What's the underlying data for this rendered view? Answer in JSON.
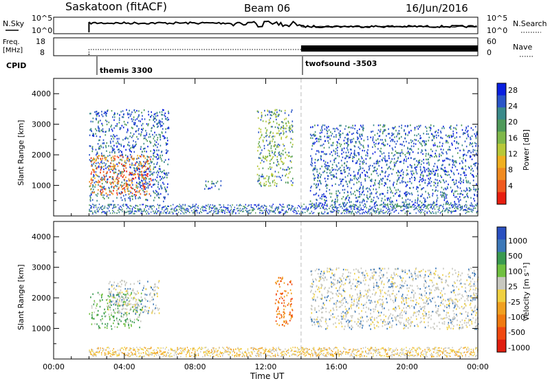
{
  "header": {
    "station": "Saskatoon (fitACF)",
    "beam": "Beam 06",
    "date": "16/Jun/2016"
  },
  "summary_panel": {
    "nsky_label": "N.Sky",
    "nsky_ticks": [
      "10^5",
      "10^0"
    ],
    "nsearch_label": "N.Search",
    "nsearch_ticks": [
      "10^5",
      "10^0"
    ],
    "freq_label": "Freq.",
    "freq_unit": "[MHz]",
    "freq_ticks": [
      "18",
      "8"
    ],
    "nave_label": "Nave",
    "nave_ticks": [
      "60",
      "0"
    ],
    "cpid_label": "CPID",
    "cpid_entries": [
      {
        "start": "02:00",
        "name": "themis 3300"
      },
      {
        "start": "14:00",
        "name": "twofsound -3503"
      }
    ]
  },
  "chart_data": [
    {
      "type": "heatmap",
      "panel": "power",
      "xlabel": "",
      "ylabel": "Slant Range [km]",
      "x_range": [
        "00:00",
        "24:00"
      ],
      "ylim": [
        0,
        4500
      ],
      "y_ticks": [
        1000,
        2000,
        3000,
        4000
      ],
      "colorbar": {
        "label": "Power [dB]",
        "ticks": [
          4,
          8,
          12,
          16,
          20,
          24,
          28
        ],
        "colors": [
          "#0a1fe0",
          "#2a55c8",
          "#3a8a8a",
          "#4f9a5a",
          "#7fb84a",
          "#b8c838",
          "#f0b020",
          "#f08a20",
          "#f05a20",
          "#e81e10"
        ]
      },
      "scatter_regions": [
        {
          "t_start": "02:00",
          "t_end": "06:30",
          "range_lo": 500,
          "range_hi": 3500,
          "level": "low"
        },
        {
          "t_start": "02:00",
          "t_end": "05:30",
          "range_lo": 700,
          "range_hi": 2000,
          "level": "high"
        },
        {
          "t_start": "08:30",
          "t_end": "09:30",
          "range_lo": 900,
          "range_hi": 1200,
          "level": "low"
        },
        {
          "t_start": "11:30",
          "t_end": "13:30",
          "range_lo": 1000,
          "range_hi": 3500,
          "level": "medium"
        },
        {
          "t_start": "14:30",
          "t_end": "24:00",
          "range_lo": 300,
          "range_hi": 3000,
          "level": "low"
        }
      ]
    },
    {
      "type": "heatmap",
      "panel": "velocity",
      "xlabel": "Time UT",
      "ylabel": "Slant Range [km]",
      "x_ticks": [
        "00:00",
        "04:00",
        "08:00",
        "12:00",
        "16:00",
        "20:00",
        "00:00"
      ],
      "ylim": [
        0,
        4500
      ],
      "y_ticks": [
        1000,
        2000,
        3000,
        4000
      ],
      "colorbar": {
        "label": "Velocity [m s⁻¹]",
        "ticks": [
          "1000",
          "500",
          "100",
          "25",
          "-25",
          "-100",
          "-500",
          "-1000"
        ],
        "colors": [
          "#2a50c0",
          "#3c78b8",
          "#3a9a50",
          "#70c040",
          "#c8c8c0",
          "#f0d040",
          "#f0a020",
          "#f07a10",
          "#f04810",
          "#e01e10"
        ]
      },
      "scatter_regions": [
        {
          "t_start": "02:00",
          "t_end": "05:00",
          "range_lo": 1000,
          "range_hi": 2200,
          "level": "low-velocity-green"
        },
        {
          "t_start": "03:00",
          "t_end": "06:00",
          "range_lo": 1500,
          "range_hi": 2600,
          "level": "near-zero"
        },
        {
          "t_start": "12:30",
          "t_end": "13:30",
          "range_lo": 1100,
          "range_hi": 2700,
          "level": "negative"
        },
        {
          "t_start": "14:30",
          "t_end": "24:00",
          "range_lo": 1000,
          "range_hi": 3000,
          "level": "near-zero"
        }
      ]
    }
  ]
}
